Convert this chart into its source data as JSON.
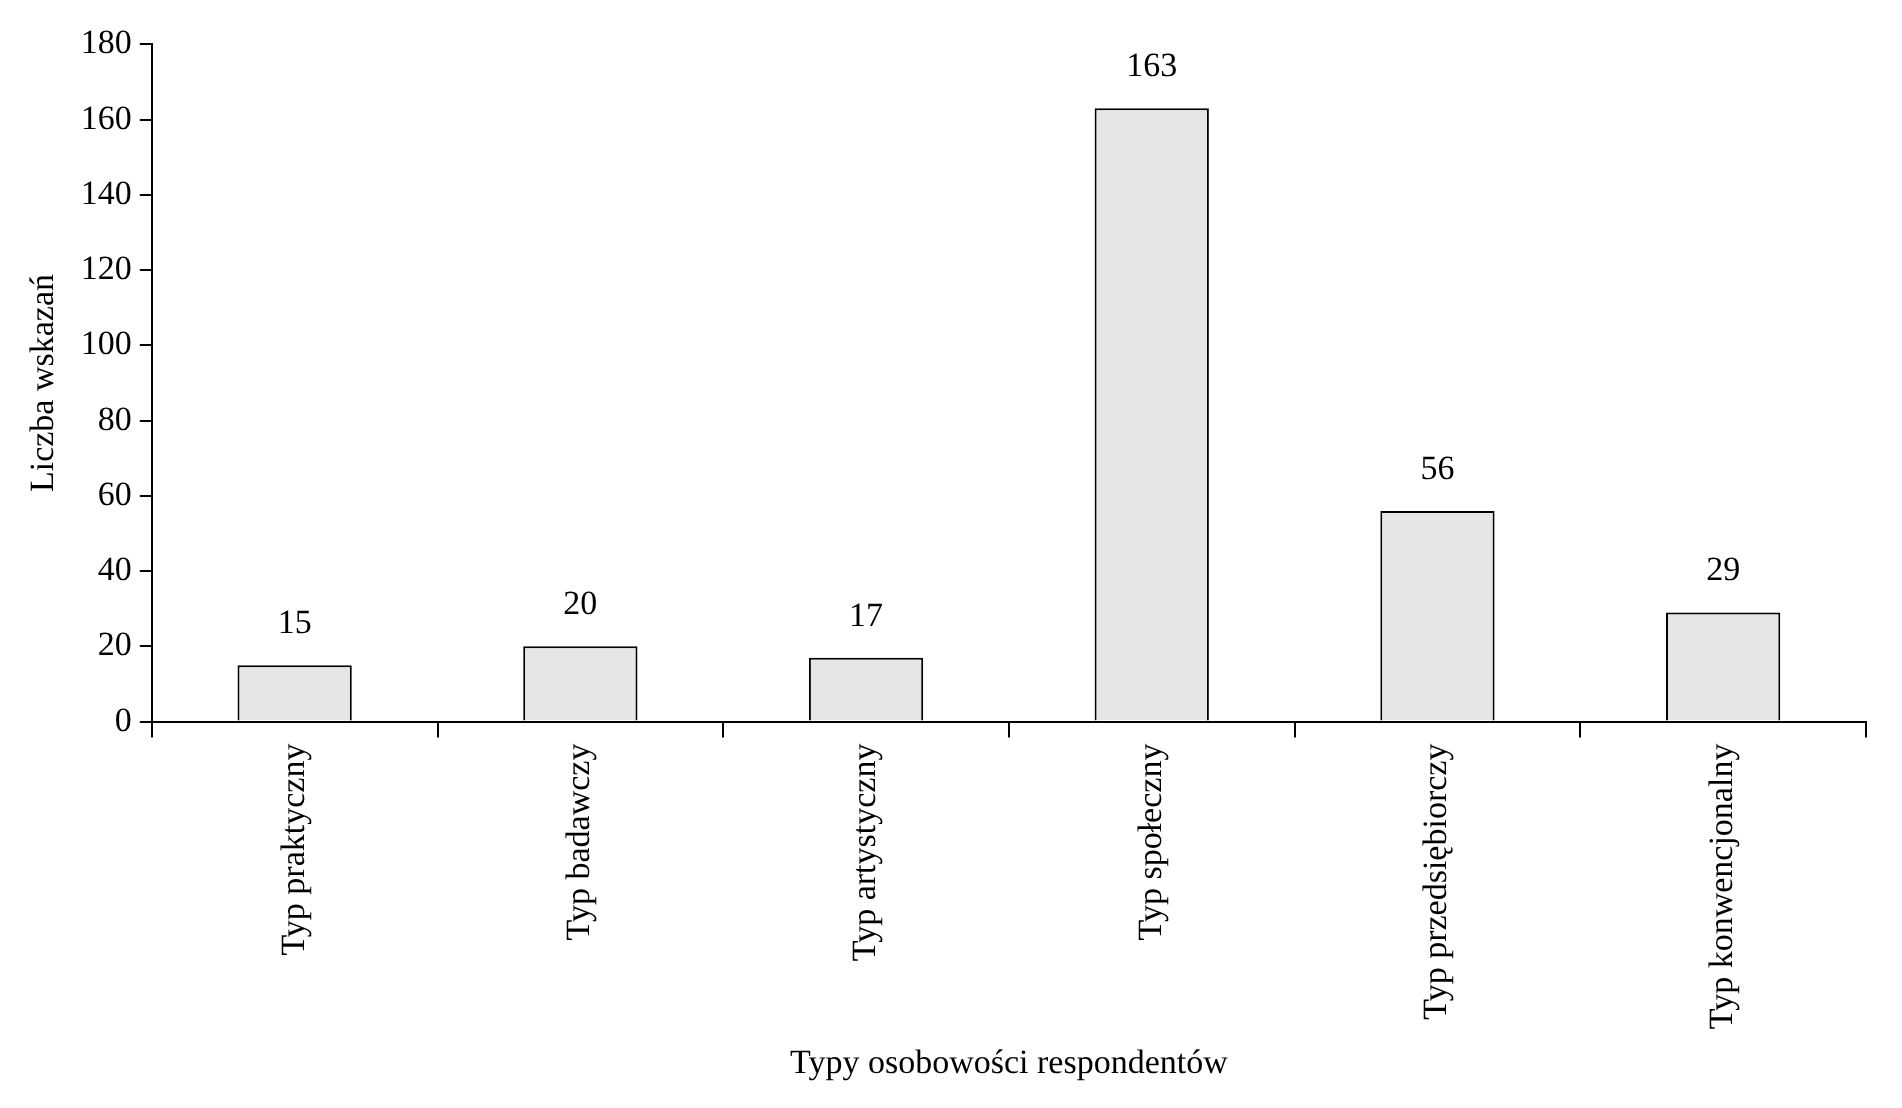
{
  "chart_data": {
    "type": "bar",
    "xlabel": "Typy osobowości respondentów",
    "ylabel": "Liczba wskazań",
    "categories": [
      "Typ praktyczny",
      "Typ badawczy",
      "Typ artystyczny",
      "Typ społeczny",
      "Typ przedsiębiorczy",
      "Typ konwencjonalny"
    ],
    "values": [
      15,
      20,
      17,
      163,
      56,
      29
    ],
    "color": "#e6e6e6",
    "ylim": [
      0,
      180
    ],
    "yticks": [
      0,
      20,
      40,
      60,
      80,
      100,
      120,
      140,
      160,
      180
    ],
    "grid": false,
    "legend": false,
    "data_labels": true
  }
}
